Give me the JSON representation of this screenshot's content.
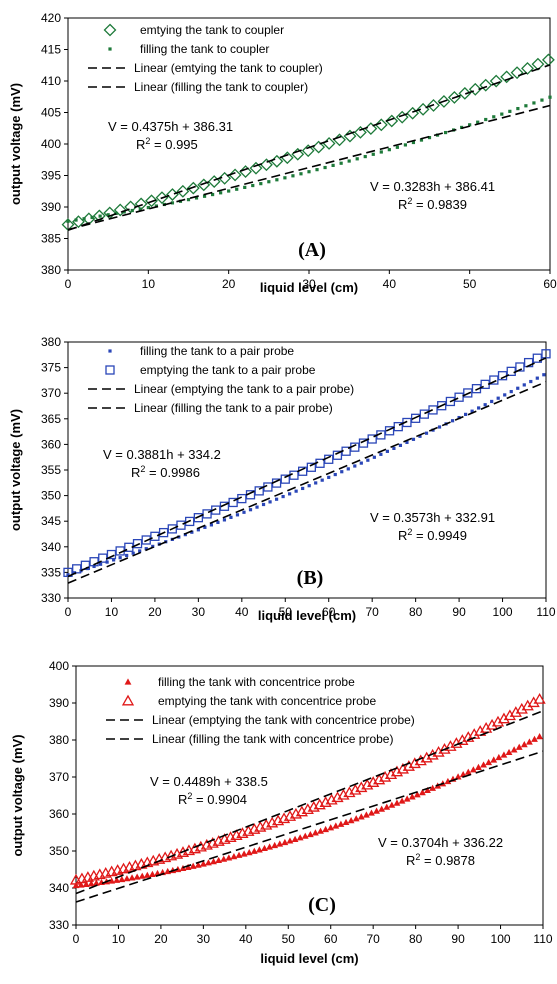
{
  "colors": {
    "a": "#1e7a3a",
    "b": "#2a46b8",
    "c": "#e01818",
    "fit": "#000000"
  },
  "chart_data": [
    {
      "type": "scatter",
      "panel_label": "(A)",
      "xlabel": "liquid level (cm)",
      "ylabel": "output voltage (mV)",
      "xlim": [
        0,
        60
      ],
      "ylim": [
        380,
        420
      ],
      "xticks": [
        0,
        10,
        20,
        30,
        40,
        50,
        60
      ],
      "yticks": [
        380,
        385,
        390,
        395,
        400,
        405,
        410,
        415,
        420
      ],
      "series": [
        {
          "name": "emtying the tank to coupler",
          "marker": "diamond-open",
          "x_start": 0,
          "x_end": 60,
          "step": 1.3,
          "quad": 0.0015,
          "fit": {
            "slope": 0.4375,
            "intercept": 386.31
          }
        },
        {
          "name": "filling the tank to coupler",
          "marker": "dot",
          "x_start": 0,
          "x_end": 60,
          "step": 1.0,
          "quad": 0.0022,
          "fit": {
            "slope": 0.3283,
            "intercept": 386.41
          }
        }
      ],
      "fits": [
        {
          "name": "Linear (emtying the tank to coupler)",
          "slope": 0.4375,
          "intercept": 386.31
        },
        {
          "name": "Linear (filling the tank to coupler)",
          "slope": 0.3283,
          "intercept": 386.41
        }
      ],
      "equations": [
        {
          "line1": "V = 0.4375h + 386.31",
          "r2": "= 0.995"
        },
        {
          "line1": "V = 0.3283h + 386.41",
          "r2": "= 0.9839"
        }
      ]
    },
    {
      "type": "scatter",
      "panel_label": "(B)",
      "xlabel": "liquid level (cm)",
      "ylabel": "output voltage (mV)",
      "xlim": [
        0,
        110
      ],
      "ylim": [
        330,
        380
      ],
      "xticks": [
        0,
        10,
        20,
        30,
        40,
        50,
        60,
        70,
        80,
        90,
        100,
        110
      ],
      "yticks": [
        330,
        335,
        340,
        345,
        350,
        355,
        360,
        365,
        370,
        375,
        380
      ],
      "series": [
        {
          "name": "filling the tank to a pair probe",
          "marker": "dot",
          "x_start": 0,
          "x_end": 110,
          "step": 1.5,
          "quad": 0.0008,
          "fit": {
            "slope": 0.3573,
            "intercept": 332.91
          }
        },
        {
          "name": "emptying the tank to a pair probe",
          "marker": "square-open",
          "x_start": 0,
          "x_end": 110,
          "step": 2.0,
          "quad": 0.0004,
          "fit": {
            "slope": 0.3881,
            "intercept": 334.2
          }
        }
      ],
      "fits": [
        {
          "name": "Linear (emptying the tank to a pair probe)",
          "slope": 0.3881,
          "intercept": 334.2
        },
        {
          "name": "Linear (filling the tank to a pair probe)",
          "slope": 0.3573,
          "intercept": 332.91
        }
      ],
      "equations": [
        {
          "line1": "V = 0.3881h + 334.2",
          "r2": "= 0.9986"
        },
        {
          "line1": "V = 0.3573h + 332.91",
          "r2": "= 0.9949"
        }
      ]
    },
    {
      "type": "scatter",
      "panel_label": "(C)",
      "xlabel": "liquid level (cm)",
      "ylabel": "output voltage (mV)",
      "xlim": [
        0,
        110
      ],
      "ylim": [
        330,
        400
      ],
      "xticks": [
        0,
        10,
        20,
        30,
        40,
        50,
        60,
        70,
        80,
        90,
        100,
        110
      ],
      "yticks": [
        330,
        340,
        350,
        360,
        370,
        380,
        390,
        400
      ],
      "series": [
        {
          "name": "filling the tank with concentrice probe",
          "marker": "triangle-filled",
          "x_start": 0,
          "x_end": 110,
          "step": 1.2,
          "quad": 0.0022,
          "fit": {
            "slope": 0.3704,
            "intercept": 336.22
          }
        },
        {
          "name": "emptying the tank with concentrice probe",
          "marker": "triangle-open",
          "x_start": 0,
          "x_end": 110,
          "step": 1.4,
          "quad": 0.0018,
          "fit": {
            "slope": 0.4489,
            "intercept": 338.5
          }
        }
      ],
      "fits": [
        {
          "name": "Linear (emptying the tank with concentrice probe)",
          "slope": 0.4489,
          "intercept": 338.5
        },
        {
          "name": "Linear (filling the tank with concentrice probe)",
          "slope": 0.3704,
          "intercept": 336.22
        }
      ],
      "equations": [
        {
          "line1": "V = 0.4489h + 338.5",
          "r2": "= 0.9904"
        },
        {
          "line1": "V = 0.3704h + 336.22",
          "r2": "= 0.9878"
        }
      ]
    }
  ]
}
